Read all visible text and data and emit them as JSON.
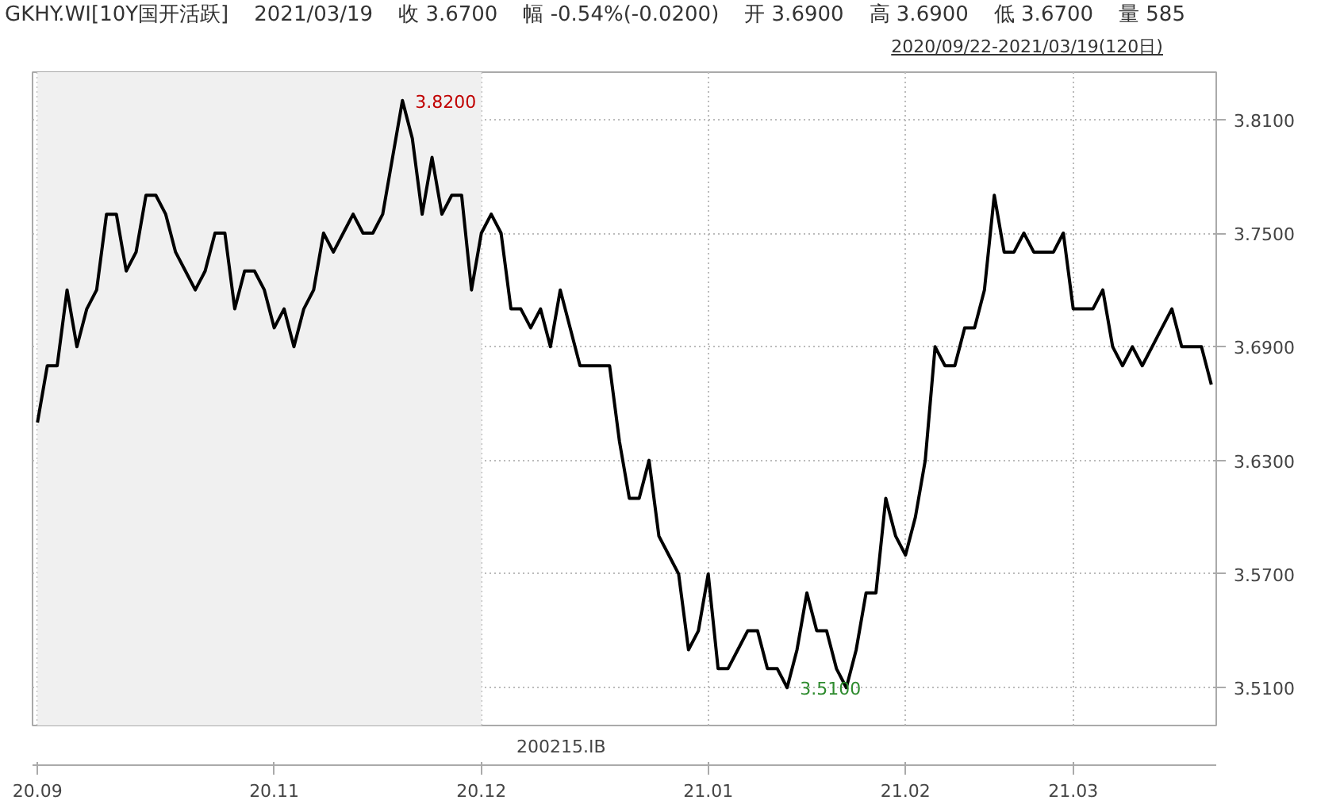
{
  "chart_data": {
    "type": "line",
    "title": "GKHY.WI[10Y国开活跃]",
    "annotations": [
      "2021/03/19",
      "收 3.6700",
      "幅 -0.54%(-0.0200)",
      "开 3.6900",
      "高 3.6900",
      "低 3.6700",
      "量 585",
      "2020/09/22-2021/03/19(120日)",
      "200215.IB",
      "3.8200",
      "3.5100"
    ],
    "categories": [
      "20.09",
      null,
      null,
      null,
      null,
      null,
      null,
      null,
      null,
      null,
      null,
      null,
      null,
      null,
      null,
      null,
      null,
      null,
      null,
      null,
      null,
      null,
      null,
      null,
      "20.11",
      null,
      null,
      null,
      null,
      null,
      null,
      null,
      null,
      null,
      null,
      null,
      null,
      null,
      null,
      null,
      null,
      null,
      null,
      null,
      null,
      "20.12",
      null,
      null,
      null,
      null,
      null,
      null,
      null,
      null,
      null,
      null,
      null,
      null,
      null,
      null,
      null,
      null,
      null,
      null,
      null,
      null,
      null,
      null,
      "21.01",
      null,
      null,
      null,
      null,
      null,
      null,
      null,
      null,
      null,
      null,
      null,
      null,
      null,
      null,
      null,
      null,
      null,
      null,
      null,
      "21.02",
      null,
      null,
      null,
      null,
      null,
      null,
      null,
      null,
      null,
      null,
      null,
      null,
      null,
      null,
      null,
      null,
      "21.03",
      null,
      null,
      null,
      null,
      null,
      null,
      null,
      null,
      null,
      null,
      null,
      null,
      null,
      null
    ],
    "series": [
      {
        "color": "#000000",
        "values": [
          3.65,
          3.68,
          3.68,
          3.72,
          3.69,
          3.71,
          3.72,
          3.76,
          3.76,
          3.73,
          3.74,
          3.77,
          3.77,
          3.76,
          3.74,
          3.73,
          3.72,
          3.73,
          3.75,
          3.75,
          3.71,
          3.73,
          3.73,
          3.72,
          3.7,
          3.71,
          3.69,
          3.71,
          3.72,
          3.75,
          3.74,
          3.75,
          3.76,
          3.75,
          3.75,
          3.76,
          3.79,
          3.82,
          3.8,
          3.76,
          3.79,
          3.76,
          3.77,
          3.77,
          3.72,
          3.75,
          3.76,
          3.75,
          3.71,
          3.71,
          3.7,
          3.71,
          3.69,
          3.72,
          3.7,
          3.68,
          3.68,
          3.68,
          3.68,
          3.64,
          3.61,
          3.61,
          3.63,
          3.59,
          3.58,
          3.57,
          3.53,
          3.54,
          3.57,
          3.52,
          3.52,
          3.53,
          3.54,
          3.54,
          3.52,
          3.52,
          3.51,
          3.53,
          3.56,
          3.54,
          3.54,
          3.52,
          3.51,
          3.53,
          3.56,
          3.56,
          3.61,
          3.59,
          3.58,
          3.6,
          3.63,
          3.69,
          3.68,
          3.68,
          3.7,
          3.7,
          3.72,
          3.77,
          3.74,
          3.74,
          3.75,
          3.74,
          3.74,
          3.74,
          3.75,
          3.71,
          3.71,
          3.71,
          3.72,
          3.69,
          3.68,
          3.69,
          3.68,
          3.69,
          3.7,
          3.71,
          3.69,
          3.69,
          3.69,
          3.67
        ]
      }
    ],
    "ylim": [
      3.49,
      3.835
    ],
    "yticks": [
      {
        "value": 3.51,
        "label": "3.5100"
      },
      {
        "value": 3.57,
        "label": "3.5700"
      },
      {
        "value": 3.63,
        "label": "3.6300"
      },
      {
        "value": 3.69,
        "label": "3.6900"
      },
      {
        "value": 3.75,
        "label": "3.7500"
      },
      {
        "value": 3.81,
        "label": "3.8100"
      }
    ],
    "bands": [
      {
        "axis": "x",
        "from": "20.09",
        "to": "20.12",
        "color": "#f0f0f0"
      }
    ],
    "grid": true,
    "line_style": "solid"
  }
}
